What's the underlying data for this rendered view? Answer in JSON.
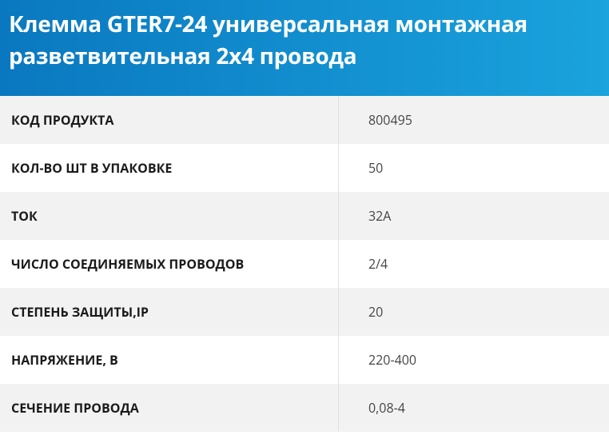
{
  "header": {
    "title": "Клемма GTER7-24 универсальная монтажная разветвительная 2х4 провода"
  },
  "table": {
    "rows": [
      [
        "КОД ПРОДУКТА",
        "800495"
      ],
      [
        "КОЛ-ВО ШТ В УПАКОВКЕ",
        "50"
      ],
      [
        "ТОК",
        "32А"
      ],
      [
        "ЧИСЛО СОЕДИНЯЕМЫХ ПРОВОДОВ",
        "2/4"
      ],
      [
        "СТЕПЕНЬ ЗАЩИТЫ,IP",
        "20"
      ],
      [
        "НАПРЯЖЕНИЕ, В",
        "220-400"
      ],
      [
        "СЕЧЕНИЕ ПРОВОДА",
        "0,08-4"
      ]
    ]
  }
}
